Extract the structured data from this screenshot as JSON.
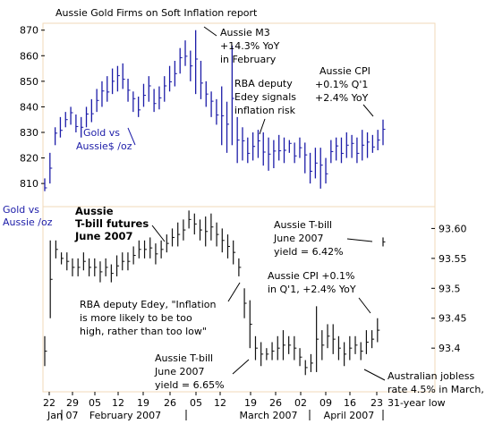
{
  "chart_data": {
    "type": "ohlc",
    "title": "Aussie Gold Firms on Soft Inflation report",
    "panels": [
      {
        "name": "gold",
        "axis_side": "left",
        "label": "Gold vs Aussie /oz",
        "ylim": [
          802,
          872
        ],
        "yticks": [
          810,
          820,
          830,
          840,
          850,
          860,
          870
        ],
        "series": [
          {
            "name": "Gold vs Aussie$ /oz",
            "color": "#1c1ca8"
          }
        ]
      },
      {
        "name": "tbill",
        "axis_side": "right",
        "label": "Aussie T-bill futures June 2007",
        "ylim": [
          93.33,
          93.635
        ],
        "yticks": [
          93.4,
          93.45,
          93.5,
          93.55,
          93.6
        ],
        "ytick_labels": [
          "93.4",
          "93.45",
          "93.5",
          "93.55",
          "93.60"
        ],
        "series": [
          {
            "name": "Aussie T-bill futures June 2007",
            "color": "#000000"
          }
        ]
      }
    ],
    "x_ticks": [
      "22",
      "29",
      "05",
      "12",
      "19",
      "26",
      "05",
      "12",
      "19",
      "26",
      "02",
      "09",
      "16",
      "23"
    ],
    "months": [
      "Jan 07",
      "February 2007",
      "March 2007",
      "April 2007"
    ],
    "gold_bars": [
      [
        807,
        812
      ],
      [
        810,
        822
      ],
      [
        825,
        832
      ],
      [
        828,
        836
      ],
      [
        832,
        838
      ],
      [
        833,
        840
      ],
      [
        830,
        837
      ],
      [
        828,
        836
      ],
      [
        832,
        840
      ],
      [
        834,
        843
      ],
      [
        838,
        847
      ],
      [
        840,
        850
      ],
      [
        842,
        852
      ],
      [
        845,
        855
      ],
      [
        846,
        856
      ],
      [
        847,
        857
      ],
      [
        842,
        851
      ],
      [
        838,
        846
      ],
      [
        836,
        844
      ],
      [
        840,
        849
      ],
      [
        842,
        852
      ],
      [
        838,
        847
      ],
      [
        839,
        848
      ],
      [
        842,
        852
      ],
      [
        846,
        856
      ],
      [
        848,
        858
      ],
      [
        853,
        863
      ],
      [
        856,
        866
      ],
      [
        850,
        862
      ],
      [
        845,
        870
      ],
      [
        843,
        858
      ],
      [
        840,
        850
      ],
      [
        836,
        846
      ],
      [
        833,
        843
      ],
      [
        825,
        848
      ],
      [
        822,
        842
      ],
      [
        825,
        864
      ],
      [
        818,
        836
      ],
      [
        819,
        832
      ],
      [
        818,
        828
      ],
      [
        819,
        830
      ],
      [
        820,
        831
      ],
      [
        817,
        830
      ],
      [
        815,
        828
      ],
      [
        816,
        827
      ],
      [
        819,
        829
      ],
      [
        818,
        828
      ],
      [
        822,
        827
      ],
      [
        818,
        826
      ],
      [
        820,
        828
      ],
      [
        814,
        826
      ],
      [
        810,
        822
      ],
      [
        812,
        824
      ],
      [
        808,
        824
      ],
      [
        810,
        820
      ],
      [
        818,
        827
      ],
      [
        819,
        828
      ],
      [
        818,
        828
      ],
      [
        820,
        830
      ],
      [
        820,
        829
      ],
      [
        818,
        828
      ],
      [
        819,
        831
      ],
      [
        820,
        830
      ],
      [
        822,
        829
      ],
      [
        823,
        831
      ],
      [
        825,
        835
      ]
    ],
    "tbill_bars": [
      [
        93.37,
        93.42
      ],
      [
        93.45,
        93.58
      ],
      [
        93.55,
        93.58
      ],
      [
        93.54,
        93.56
      ],
      [
        93.53,
        93.56
      ],
      [
        93.52,
        93.55
      ],
      [
        93.52,
        93.55
      ],
      [
        93.53,
        93.56
      ],
      [
        93.52,
        93.55
      ],
      [
        93.52,
        93.55
      ],
      [
        93.51,
        93.545
      ],
      [
        93.52,
        93.55
      ],
      [
        93.51,
        93.54
      ],
      [
        93.52,
        93.555
      ],
      [
        93.53,
        93.56
      ],
      [
        93.53,
        93.56
      ],
      [
        93.54,
        93.57
      ],
      [
        93.55,
        93.58
      ],
      [
        93.55,
        93.58
      ],
      [
        93.55,
        93.585
      ],
      [
        93.54,
        93.575
      ],
      [
        93.55,
        93.58
      ],
      [
        93.56,
        93.59
      ],
      [
        93.57,
        93.6
      ],
      [
        93.57,
        93.61
      ],
      [
        93.58,
        93.615
      ],
      [
        93.6,
        93.63
      ],
      [
        93.59,
        93.625
      ],
      [
        93.58,
        93.615
      ],
      [
        93.57,
        93.62
      ],
      [
        93.58,
        93.625
      ],
      [
        93.57,
        93.61
      ],
      [
        93.56,
        93.6
      ],
      [
        93.55,
        93.59
      ],
      [
        93.54,
        93.58
      ],
      [
        93.52,
        93.55
      ],
      [
        93.45,
        93.5
      ],
      [
        93.4,
        93.48
      ],
      [
        93.38,
        93.42
      ],
      [
        93.37,
        93.41
      ],
      [
        93.38,
        93.4
      ],
      [
        93.38,
        93.41
      ],
      [
        93.38,
        93.42
      ],
      [
        93.38,
        93.43
      ],
      [
        93.39,
        93.42
      ],
      [
        93.38,
        93.42
      ],
      [
        93.37,
        93.4
      ],
      [
        93.355,
        93.38
      ],
      [
        93.36,
        93.39
      ],
      [
        93.36,
        93.47
      ],
      [
        93.38,
        93.43
      ],
      [
        93.4,
        93.44
      ],
      [
        93.39,
        93.44
      ],
      [
        93.38,
        93.42
      ],
      [
        93.37,
        93.41
      ],
      [
        93.38,
        93.42
      ],
      [
        93.39,
        93.42
      ],
      [
        93.38,
        93.41
      ],
      [
        93.39,
        93.43
      ],
      [
        93.4,
        93.43
      ],
      [
        93.41,
        93.45
      ],
      [
        93.57,
        93.585
      ]
    ],
    "annotations": [
      {
        "lines": [
          "Aussie M3",
          "+14.3% YoY",
          "in February"
        ]
      },
      {
        "lines": [
          "Aussie CPI",
          "+0.1% Q'1",
          "+2.4% YoY"
        ]
      },
      {
        "lines": [
          "RBA deputy",
          "Edey signals",
          "inflation risk"
        ]
      },
      {
        "lines": [
          "Gold vs",
          "Aussie$ /oz"
        ]
      },
      {
        "lines": [
          "Aussie",
          "T-bill futures",
          "June 2007"
        ]
      },
      {
        "lines": [
          "Aussie T-bill",
          "June 2007",
          "yield = 6.42%"
        ]
      },
      {
        "lines": [
          "Aussie CPI +0.1%",
          "in Q'1, +2.4% YoY"
        ]
      },
      {
        "lines": [
          "RBA deputy Edey, \"Inflation",
          "is more likely to be too",
          "high, rather than too low\""
        ]
      },
      {
        "lines": [
          "Aussie T-bill",
          "June 2007",
          "yield = 6.65%"
        ]
      },
      {
        "lines": [
          "Australian jobless",
          "rate 4.5% in March,",
          "31-year low"
        ]
      }
    ]
  }
}
